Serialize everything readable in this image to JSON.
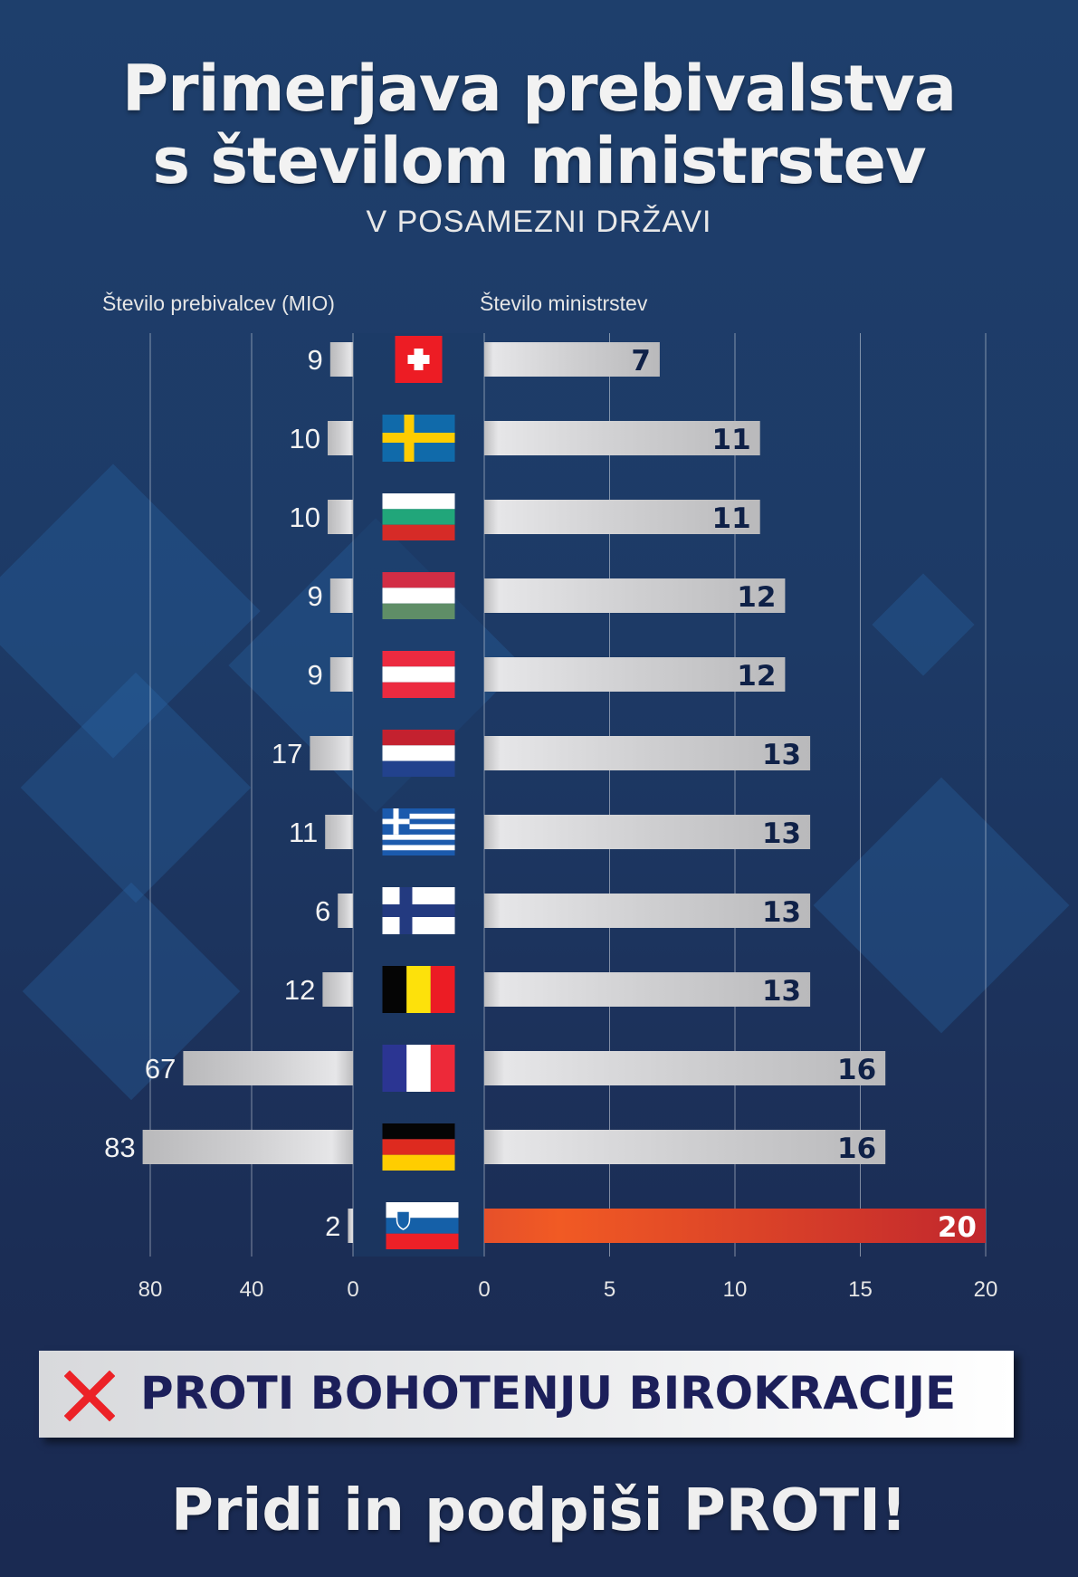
{
  "header": {
    "title_line1": "Primerjava prebivalstva",
    "title_line2": "s številom ministrstev",
    "subtitle": "V POSAMEZNI DRŽAVI"
  },
  "chart_data": {
    "type": "bar",
    "orientation": "horizontal-butterfly",
    "title": "Primerjava prebivalstva s številom ministrstev",
    "subtitle": "V POSAMEZNI DRŽAVI",
    "categories": [
      "Switzerland",
      "Sweden",
      "Bulgaria",
      "Hungary",
      "Austria",
      "Netherlands",
      "Greece",
      "Finland",
      "Belgium",
      "France",
      "Germany",
      "Slovenia"
    ],
    "flags": [
      "ch",
      "se",
      "bg",
      "hu",
      "at",
      "nl",
      "gr",
      "fi",
      "be",
      "fr",
      "de",
      "si"
    ],
    "series": [
      {
        "name": "Število prebivalcev (MIO)",
        "side": "left",
        "values": [
          9,
          10,
          10,
          9,
          9,
          17,
          11,
          6,
          12,
          67,
          83,
          2
        ]
      },
      {
        "name": "Število ministrstev",
        "side": "right",
        "values": [
          7,
          11,
          11,
          12,
          12,
          13,
          13,
          13,
          13,
          16,
          16,
          20
        ]
      }
    ],
    "left_axis": {
      "label": "Število prebivalcev (MIO)",
      "ticks": [
        80,
        40,
        0
      ],
      "range": [
        0,
        80
      ]
    },
    "right_axis": {
      "label": "Število ministrstev",
      "ticks": [
        0,
        5,
        10,
        15,
        20
      ],
      "range": [
        0,
        20
      ]
    },
    "highlight_category": "Slovenia",
    "colors": {
      "bar": "#c9c9cb",
      "highlight_start": "#f15a24",
      "highlight_end": "#c1272d",
      "value_text": "#0f2148"
    },
    "grid": true
  },
  "banner": {
    "icon": "cross-icon",
    "text": "PROTI BOHOTENJU BIROKRACIJE",
    "text_color": "#1c1f5a",
    "icon_color": "#ec2227"
  },
  "footer": {
    "call_to_action": "Pridi in podpiši PROTI!"
  }
}
